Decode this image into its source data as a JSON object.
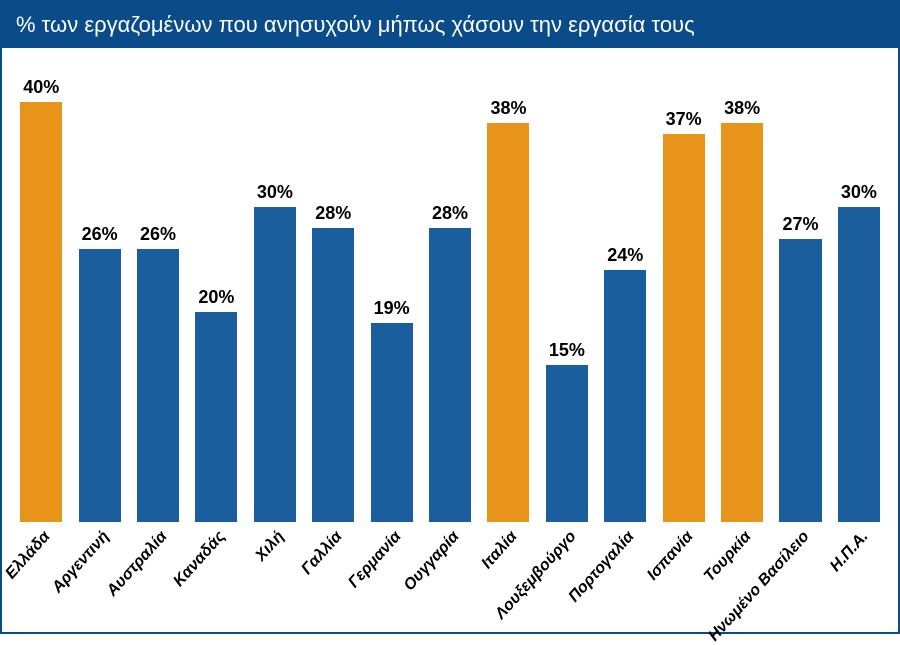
{
  "chart": {
    "type": "bar",
    "title": "% των εργαζομένων που ανησυχούν μήπως χάσουν την εργασία τους",
    "title_color": "#ffffff",
    "title_bg": "#0a4b8a",
    "title_fontsize": 22,
    "background_color": "#ffffff",
    "border_color": "#0a4b8a",
    "ylim": [
      0,
      40
    ],
    "bar_width_pct": 72,
    "value_fontsize": 18,
    "value_fontweight": "bold",
    "label_fontsize": 16,
    "label_fontstyle": "italic",
    "label_rotation_deg": -48,
    "colors": {
      "blue": "#1b5e9e",
      "orange": "#e8941a"
    },
    "categories": [
      "Ελλάδα",
      "Αργεντινή",
      "Αυστραλία",
      "Καναδάς",
      "Χιλή",
      "Γαλλία",
      "Γερμανία",
      "Ουγγαρία",
      "Ιταλία",
      "Λουξεμβούργο",
      "Πορτογαλία",
      "Ισπανία",
      "Τουρκία",
      "Ηνωμένο Βασίλειο",
      "Η.Π.Α."
    ],
    "values": [
      40,
      26,
      26,
      20,
      30,
      28,
      19,
      28,
      38,
      15,
      24,
      37,
      38,
      27,
      30
    ],
    "bar_colors": [
      "#e8941a",
      "#1b5e9e",
      "#1b5e9e",
      "#1b5e9e",
      "#1b5e9e",
      "#1b5e9e",
      "#1b5e9e",
      "#1b5e9e",
      "#e8941a",
      "#1b5e9e",
      "#1b5e9e",
      "#e8941a",
      "#e8941a",
      "#1b5e9e",
      "#1b5e9e"
    ],
    "value_labels": [
      "40%",
      "26%",
      "26%",
      "20%",
      "30%",
      "28%",
      "19%",
      "28%",
      "38%",
      "15%",
      "24%",
      "37%",
      "38%",
      "27%",
      "30%"
    ]
  }
}
